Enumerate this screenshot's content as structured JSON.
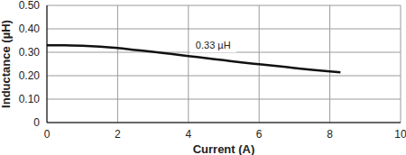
{
  "chart_data": {
    "type": "line",
    "x_label": "Current (A)",
    "y_label": "Inductance (µH)",
    "x": [
      0,
      0.5,
      1,
      1.5,
      2,
      2.5,
      3,
      3.5,
      4,
      4.5,
      5,
      5.5,
      6,
      6.5,
      7,
      7.5,
      8,
      8.3
    ],
    "series": [
      {
        "name": "Inductance",
        "color": "#111111",
        "values": [
          0.33,
          0.33,
          0.328,
          0.324,
          0.318,
          0.31,
          0.302,
          0.293,
          0.284,
          0.275,
          0.266,
          0.257,
          0.249,
          0.241,
          0.233,
          0.225,
          0.218,
          0.214
        ]
      }
    ],
    "xlim": [
      0,
      10
    ],
    "xticks": [
      0,
      2,
      4,
      6,
      8,
      10
    ],
    "ylim": [
      0,
      0.5
    ],
    "yticks": [
      0,
      {
        "value": 0.1,
        "label": "0.10"
      },
      {
        "value": 0.2,
        "label": "0.20"
      },
      {
        "value": 0.3,
        "label": "0.30"
      },
      {
        "value": 0.4,
        "label": "0.40"
      },
      {
        "value": 0.5,
        "label": "0.50"
      }
    ],
    "grid": true,
    "annotations": [
      {
        "text": "0.33 µH",
        "x": 4.7,
        "y": 0.33
      }
    ]
  }
}
